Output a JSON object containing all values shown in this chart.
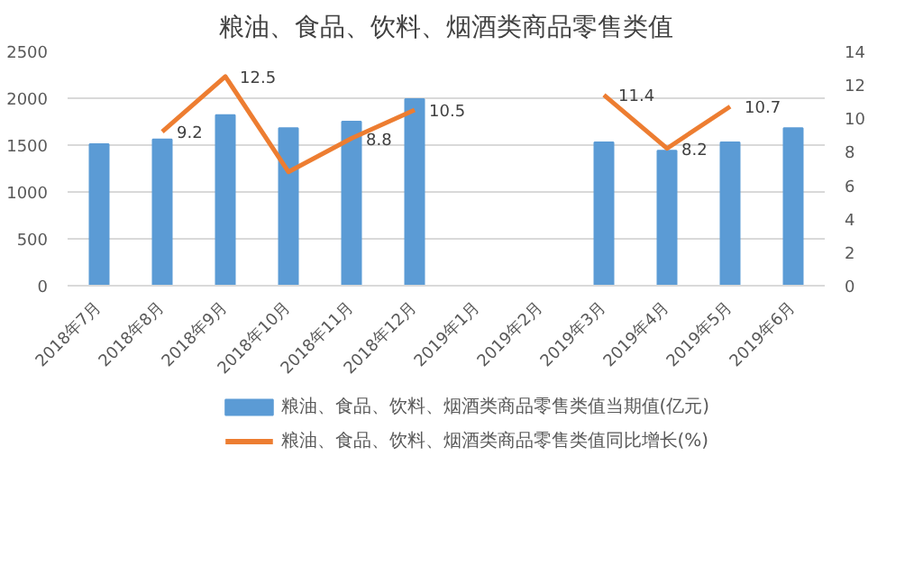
{
  "chart_data": {
    "type": "bar",
    "title": "粮油、食品、饮料、烟酒类商品零售类值",
    "categories": [
      "2018年7月",
      "2018年8月",
      "2018年9月",
      "2018年10月",
      "2018年11月",
      "2018年12月",
      "2019年1月",
      "2019年2月",
      "2019年3月",
      "2019年4月",
      "2019年5月",
      "2019年6月"
    ],
    "series": [
      {
        "name": "粮油、食品、饮料、烟酒类商品零售类值当期值(亿元)",
        "color": "#5b9bd5",
        "values": [
          1510,
          1560,
          1820,
          1680,
          1750,
          1990,
          null,
          null,
          1530,
          1440,
          1530,
          1680
        ]
      },
      {
        "name": "粮油、食品、饮料、烟酒类商品零售类值同比增长(%)",
        "type": "line",
        "axis": "y2",
        "color": "#ed7d31",
        "values": [
          null,
          9.2,
          12.5,
          6.8,
          8.8,
          10.5,
          null,
          null,
          11.4,
          8.2,
          10.7,
          null
        ],
        "value_labels": [
          null,
          "9.2",
          "12.5",
          null,
          "8.8",
          "10.5",
          null,
          null,
          "11.4",
          "8.2",
          "10.7",
          null
        ]
      }
    ],
    "ylim": [
      0,
      2500
    ],
    "yticks": [
      0,
      500,
      1000,
      1500,
      2000,
      2500
    ],
    "y2lim": [
      0,
      14
    ],
    "y2ticks": [
      0,
      2,
      4,
      6,
      8,
      10,
      12,
      14
    ],
    "grid": "y",
    "legend": "bottom"
  }
}
